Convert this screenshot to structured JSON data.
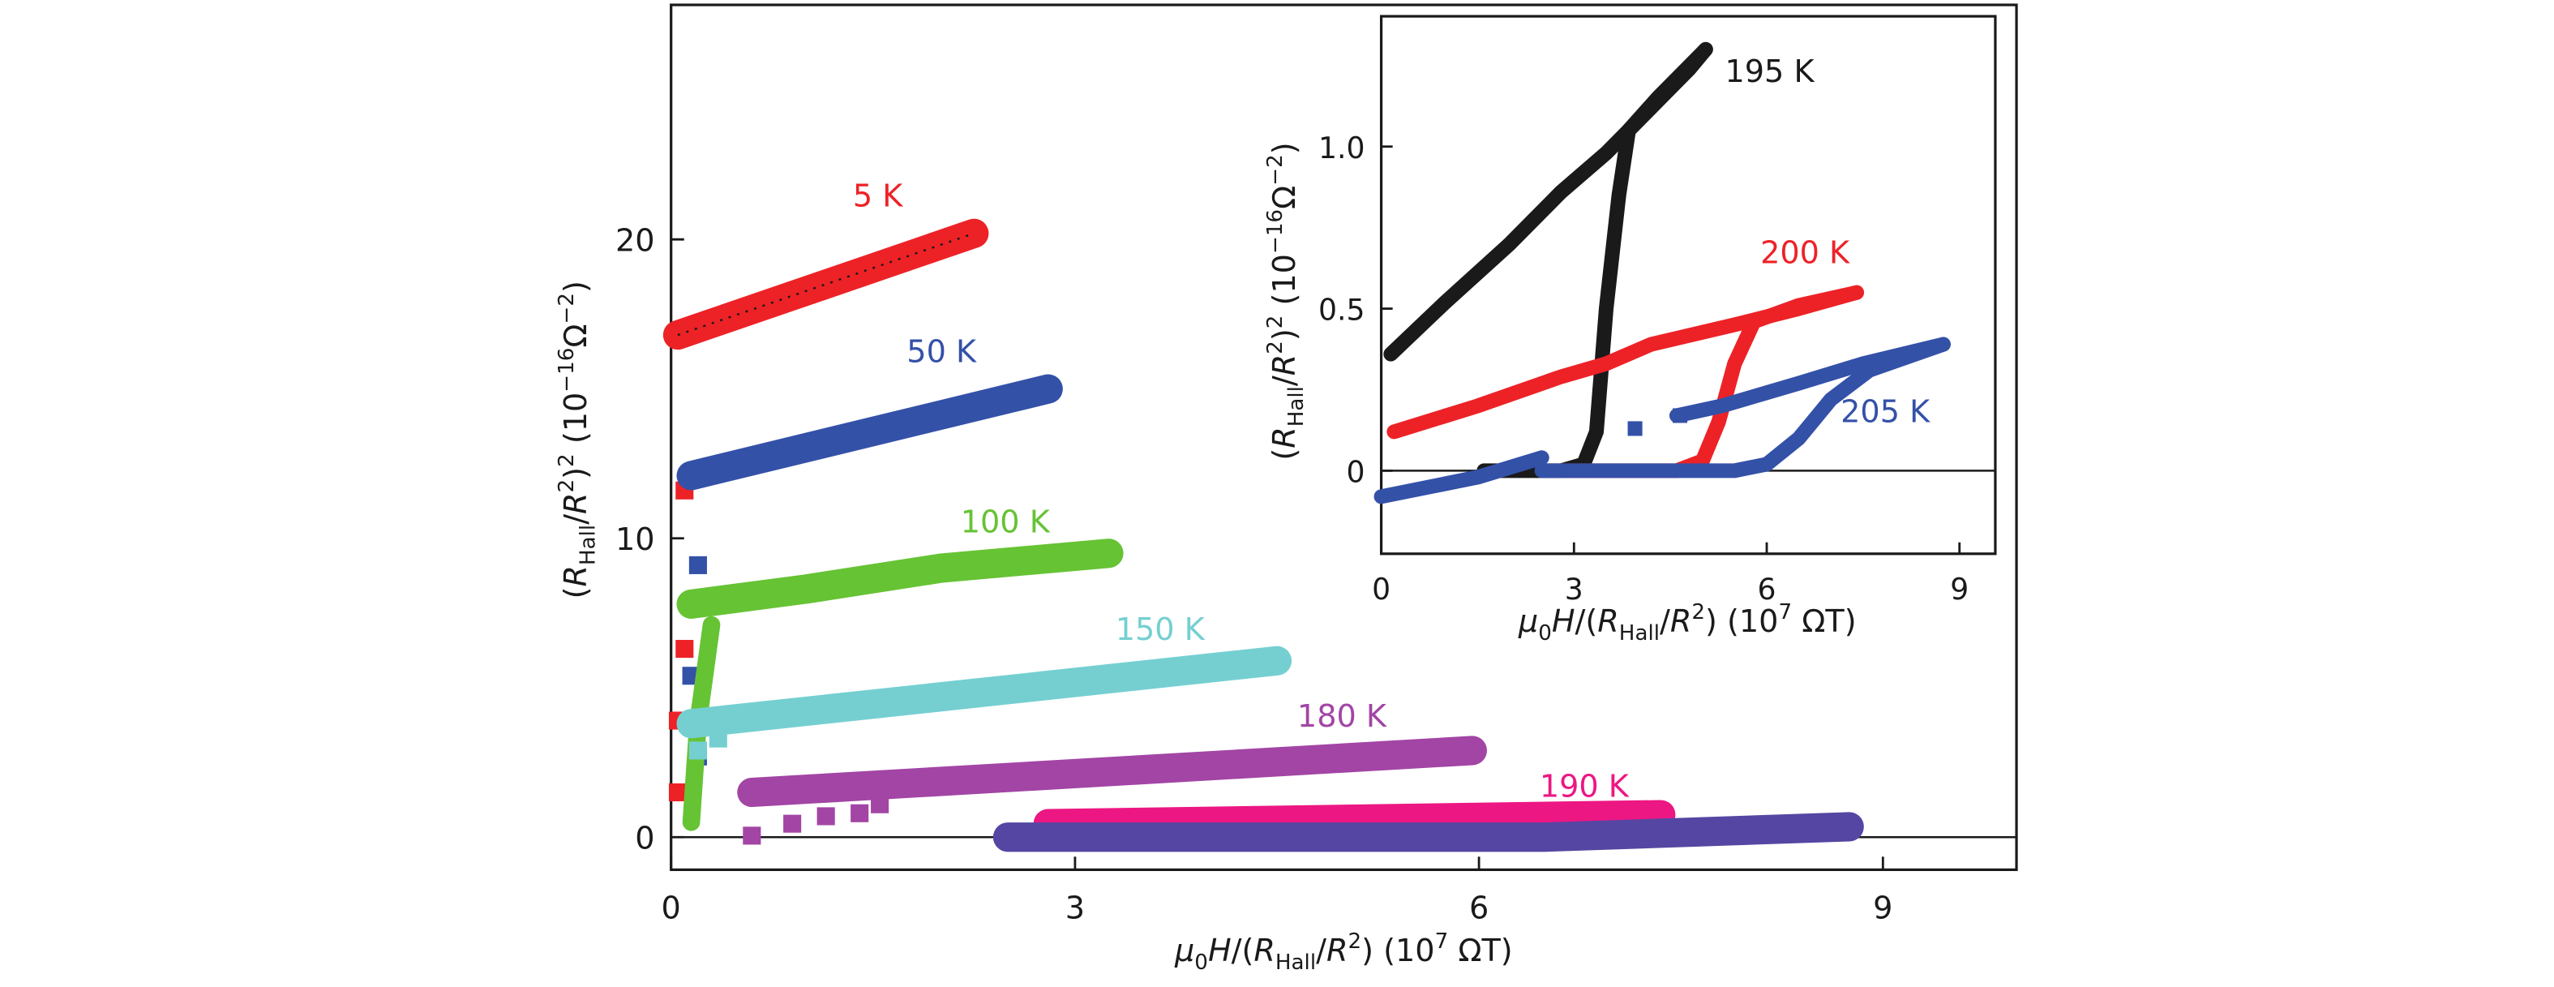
{
  "chart_data": [
    {
      "id": "main",
      "type": "scatter",
      "title": "",
      "xlabel": "μ0H/(R_Hall/R²) (10^7 ΩT)",
      "xlabel_parts": {
        "mu": "μ",
        "sub0": "0",
        "H": "H",
        "slash1": "/(",
        "R1": "R",
        "subHall": "Hall",
        "slash2": "/",
        "R2": "R",
        "sup2": "2",
        "tail": ") (10",
        "sup7": "7",
        "unit": " ΩT)"
      },
      "ylabel": "(R_Hall/R²)² (10^-16 Ω^-2)",
      "ylabel_parts": {
        "open": "(",
        "R1": "R",
        "subHall": "Hall",
        "slash": "/",
        "R2": "R",
        "sup2a": "2",
        "close": ")",
        "sup2b": "2",
        "tail": " (10",
        "supExp": "−16",
        "omega": "Ω",
        "supOmega": "−2",
        "end": ")"
      },
      "xlim": [
        0,
        10
      ],
      "ylim": [
        -1,
        28
      ],
      "xticks": [
        0,
        3,
        6,
        9
      ],
      "xtick_labels": [
        "0",
        "3",
        "6",
        "9"
      ],
      "yticks": [
        0,
        10,
        20
      ],
      "ytick_labels": [
        "0",
        "10",
        "20"
      ],
      "zero_line": true,
      "series": [
        {
          "name": "5 K",
          "color": "#ED2227",
          "label_at": [
            1.35,
            21.1
          ],
          "line": [
            [
              0.05,
              16.8
            ],
            [
              2.25,
              20.2
            ]
          ],
          "scatter": [
            [
              0.1,
              11.6
            ],
            [
              0.1,
              6.3
            ],
            [
              0.05,
              3.9
            ],
            [
              0.05,
              1.5
            ]
          ],
          "fit": "dotted"
        },
        {
          "name": "50 K",
          "color": "#3451A8",
          "label_at": [
            1.75,
            15.9
          ],
          "line": [
            [
              0.15,
              12.1
            ],
            [
              2.8,
              15.0
            ]
          ],
          "scatter": [
            [
              0.2,
              9.1
            ],
            [
              0.15,
              5.4
            ],
            [
              0.15,
              3.9
            ],
            [
              0.2,
              2.7
            ]
          ]
        },
        {
          "name": "100 K",
          "color": "#66C334",
          "label_at": [
            2.15,
            10.2
          ],
          "line": [
            [
              0.15,
              7.8
            ],
            [
              1.0,
              8.3
            ],
            [
              2.0,
              9.0
            ],
            [
              3.25,
              9.5
            ]
          ],
          "branch": [
            [
              0.3,
              7.1
            ],
            [
              0.2,
              3.8
            ],
            [
              0.15,
              0.5
            ]
          ]
        },
        {
          "name": "150 K",
          "color": "#75CFD1",
          "label_at": [
            3.3,
            6.6
          ],
          "line": [
            [
              0.15,
              3.8
            ],
            [
              4.5,
              5.9
            ]
          ],
          "scatter": [
            [
              0.35,
              3.3
            ],
            [
              0.2,
              2.9
            ]
          ]
        },
        {
          "name": "180 K",
          "color": "#A245A5",
          "label_at": [
            4.65,
            3.7
          ],
          "line": [
            [
              0.6,
              1.5
            ],
            [
              5.95,
              2.9
            ]
          ],
          "scatter": [
            [
              0.6,
              0.05
            ],
            [
              0.9,
              0.45
            ],
            [
              1.15,
              0.7
            ],
            [
              1.4,
              0.8
            ],
            [
              1.55,
              1.1
            ]
          ]
        },
        {
          "name": "190 K",
          "color": "#EC1783",
          "label_at": [
            6.45,
            1.35
          ],
          "line": [
            [
              2.8,
              0.45
            ],
            [
              7.35,
              0.75
            ]
          ]
        },
        {
          "name": "",
          "color": "#5546A3",
          "line": [
            [
              2.5,
              0.0
            ],
            [
              6.5,
              0.0
            ],
            [
              8.75,
              0.35
            ]
          ]
        }
      ]
    },
    {
      "id": "inset",
      "type": "scatter",
      "title": "",
      "xlabel": "μ0H/(R_Hall/R²) (10^7 ΩT)",
      "ylabel": "(R_Hall/R²)² (10^-16 Ω^-2)",
      "xlim": [
        0,
        9.5
      ],
      "ylim": [
        -0.26,
        1.4
      ],
      "xticks": [
        0,
        3,
        6,
        9
      ],
      "xtick_labels": [
        "0",
        "3",
        "6",
        "9"
      ],
      "yticks": [
        0,
        0.5,
        1.0
      ],
      "ytick_labels": [
        "0",
        "0.5",
        "1.0"
      ],
      "zero_line": true,
      "series": [
        {
          "name": "195 K",
          "color": "#1A1A1A",
          "label_at": [
            5.35,
            1.2
          ],
          "up": [
            [
              0.15,
              0.36
            ],
            [
              1.0,
              0.52
            ],
            [
              2.0,
              0.7
            ],
            [
              2.8,
              0.86
            ],
            [
              3.5,
              0.98
            ],
            [
              4.2,
              1.12
            ],
            [
              4.8,
              1.24
            ],
            [
              5.05,
              1.3
            ]
          ],
          "down": [
            [
              1.6,
              0.0
            ],
            [
              2.8,
              0.0
            ],
            [
              3.15,
              0.02
            ],
            [
              3.35,
              0.12
            ],
            [
              3.5,
              0.5
            ],
            [
              3.7,
              0.85
            ],
            [
              3.85,
              1.05
            ],
            [
              4.3,
              1.15
            ],
            [
              5.05,
              1.3
            ]
          ]
        },
        {
          "name": "200 K",
          "color": "#ED2227",
          "label_at": [
            5.9,
            0.64
          ],
          "up": [
            [
              0.2,
              0.12
            ],
            [
              1.5,
              0.2
            ],
            [
              2.8,
              0.29
            ],
            [
              3.5,
              0.33
            ],
            [
              4.2,
              0.39
            ],
            [
              5.5,
              0.45
            ],
            [
              6.5,
              0.5
            ],
            [
              7.4,
              0.55
            ]
          ],
          "down": [
            [
              2.8,
              0.0
            ],
            [
              4.6,
              0.0
            ],
            [
              5.0,
              0.03
            ],
            [
              5.25,
              0.15
            ],
            [
              5.5,
              0.33
            ],
            [
              5.8,
              0.46
            ],
            [
              6.5,
              0.51
            ],
            [
              7.4,
              0.55
            ]
          ]
        },
        {
          "name": "205 K",
          "color": "#3451A8",
          "label_at": [
            7.15,
            0.15
          ],
          "up": [
            [
              0.0,
              -0.08
            ],
            [
              1.5,
              -0.02
            ],
            [
              2.5,
              0.04
            ]
          ],
          "up2": [
            [
              4.6,
              0.17
            ],
            [
              5.3,
              0.2
            ],
            [
              6.5,
              0.27
            ],
            [
              7.5,
              0.33
            ],
            [
              8.75,
              0.39
            ]
          ],
          "down": [
            [
              2.5,
              0.0
            ],
            [
              5.5,
              0.0
            ],
            [
              6.0,
              0.02
            ],
            [
              6.5,
              0.1
            ],
            [
              7.0,
              0.22
            ],
            [
              7.6,
              0.31
            ],
            [
              8.75,
              0.39
            ]
          ],
          "scatter": [
            [
              3.95,
              0.13
            ],
            [
              4.65,
              0.17
            ]
          ]
        }
      ]
    }
  ]
}
